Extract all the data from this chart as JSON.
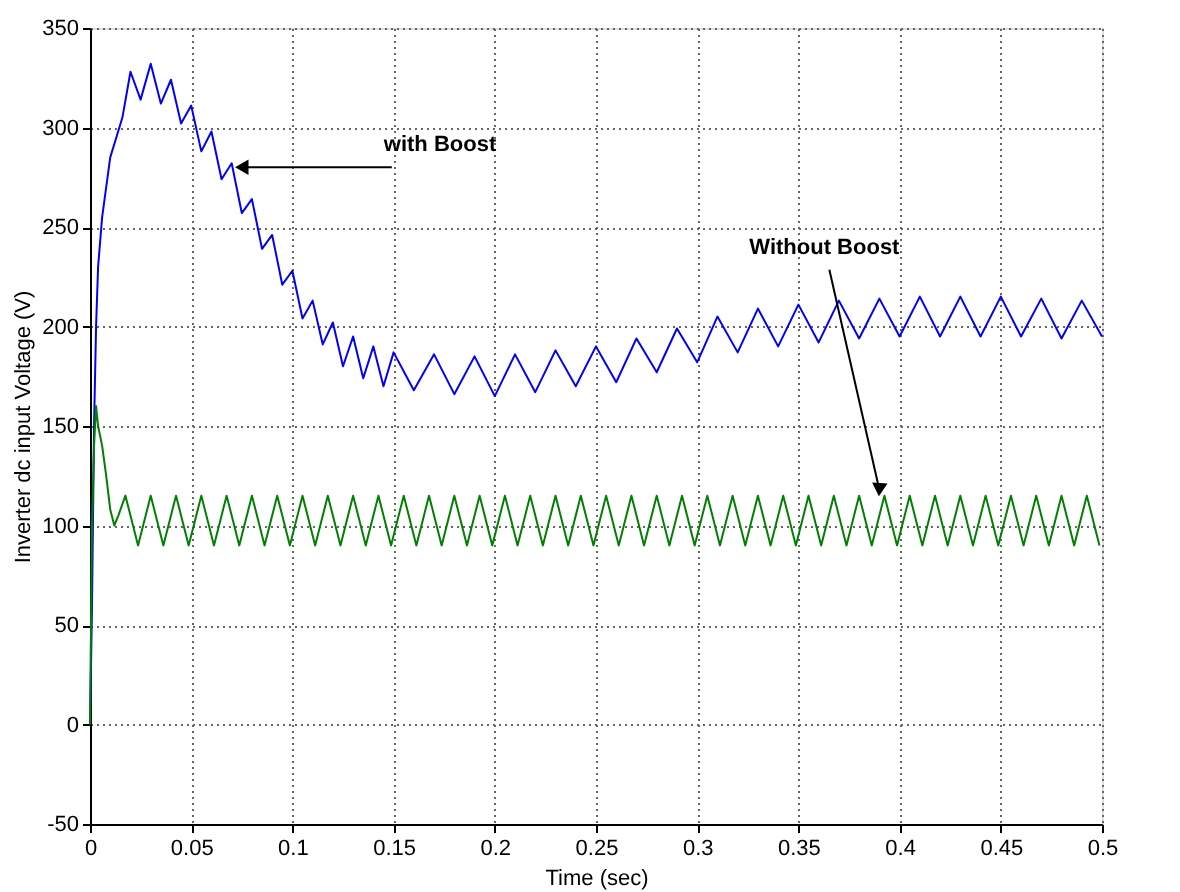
{
  "chart_data": {
    "type": "line",
    "xlabel": "Time (sec)",
    "ylabel": "Inverter dc input Voltage (V)",
    "xlim": [
      0,
      0.5
    ],
    "ylim": [
      -50,
      350
    ],
    "xticks": [
      0,
      0.05,
      0.1,
      0.15,
      0.2,
      0.25,
      0.3,
      0.35,
      0.4,
      0.45,
      0.5
    ],
    "yticks": [
      -50,
      0,
      50,
      100,
      150,
      200,
      250,
      300,
      350
    ],
    "grid": true,
    "line_style": "solid",
    "marker": "none",
    "series": [
      {
        "color": "#0000ff",
        "x": [
          0,
          0.001,
          0.002,
          0.003,
          0.004,
          0.006,
          0.008,
          0.01,
          0.013,
          0.016,
          0.02,
          0.025,
          0.03,
          0.035,
          0.04,
          0.045,
          0.05,
          0.055,
          0.06,
          0.065,
          0.07,
          0.075,
          0.08,
          0.085,
          0.09,
          0.095,
          0.1,
          0.105,
          0.11,
          0.115,
          0.12,
          0.125,
          0.13,
          0.135,
          0.14,
          0.145,
          0.15,
          0.16,
          0.17,
          0.18,
          0.19,
          0.2,
          0.21,
          0.22,
          0.23,
          0.24,
          0.25,
          0.26,
          0.27,
          0.28,
          0.29,
          0.3,
          0.31,
          0.32,
          0.33,
          0.34,
          0.35,
          0.36,
          0.37,
          0.38,
          0.39,
          0.4,
          0.41,
          0.42,
          0.43,
          0.44,
          0.45,
          0.46,
          0.47,
          0.48,
          0.49,
          0.5
        ],
        "values": [
          0,
          60,
          150,
          200,
          230,
          255,
          270,
          285,
          295,
          305,
          328,
          314,
          332,
          312,
          324,
          302,
          311,
          288,
          298,
          274,
          282,
          257,
          264,
          239,
          246,
          221,
          228,
          204,
          213,
          191,
          202,
          180,
          195,
          174,
          190,
          170,
          187,
          168,
          186,
          166,
          185,
          165,
          186,
          167,
          188,
          170,
          190,
          172,
          194,
          177,
          199,
          182,
          205,
          187,
          209,
          190,
          211,
          192,
          213,
          194,
          214,
          195,
          215,
          195,
          215,
          195,
          215,
          195,
          214,
          194,
          213,
          195
        ]
      },
      {
        "color": "#008000",
        "x": [
          0,
          0.001,
          0.002,
          0.003,
          0.004,
          0.006,
          0.008,
          0.01,
          0.012,
          0.014,
          0.0175,
          0.02375,
          0.03,
          0.03625,
          0.0425,
          0.04875,
          0.055,
          0.06125,
          0.0675,
          0.07375,
          0.08,
          0.08625,
          0.0925,
          0.09875,
          0.105,
          0.11125,
          0.1175,
          0.12375,
          0.13,
          0.13625,
          0.1425,
          0.14875,
          0.155,
          0.16125,
          0.1675,
          0.17375,
          0.18,
          0.18625,
          0.1925,
          0.19875,
          0.205,
          0.21125,
          0.2175,
          0.22375,
          0.23,
          0.23625,
          0.2425,
          0.24875,
          0.255,
          0.26125,
          0.2675,
          0.27375,
          0.28,
          0.28625,
          0.2925,
          0.29875,
          0.305,
          0.31125,
          0.3175,
          0.32375,
          0.33,
          0.33625,
          0.3425,
          0.34875,
          0.355,
          0.36125,
          0.3675,
          0.37375,
          0.38,
          0.38625,
          0.3925,
          0.39875,
          0.405,
          0.41125,
          0.4175,
          0.42375,
          0.43,
          0.43625,
          0.4425,
          0.44875,
          0.455,
          0.46125,
          0.4675,
          0.47375,
          0.48,
          0.48625,
          0.4925,
          0.49875
        ],
        "values": [
          0,
          100,
          140,
          160,
          150,
          140,
          125,
          108,
          100,
          105,
          115,
          90,
          115,
          90,
          115,
          90,
          115,
          90,
          115,
          90,
          115,
          90,
          115,
          90,
          115,
          90,
          115,
          90,
          115,
          90,
          115,
          90,
          115,
          90,
          115,
          90,
          115,
          90,
          115,
          90,
          115,
          90,
          115,
          90,
          115,
          90,
          115,
          90,
          115,
          90,
          115,
          90,
          115,
          90,
          115,
          90,
          115,
          90,
          115,
          90,
          115,
          90,
          115,
          90,
          115,
          90,
          115,
          90,
          115,
          90,
          115,
          90,
          115,
          90,
          115,
          90,
          115,
          90,
          115,
          90,
          115,
          90,
          115,
          90,
          115,
          90,
          115,
          90
        ]
      }
    ],
    "annotations": [
      {
        "text": "with Boost",
        "x": 0.075,
        "y": 280
      },
      {
        "text": "Without Boost",
        "x": 0.39,
        "y": 118
      }
    ]
  }
}
